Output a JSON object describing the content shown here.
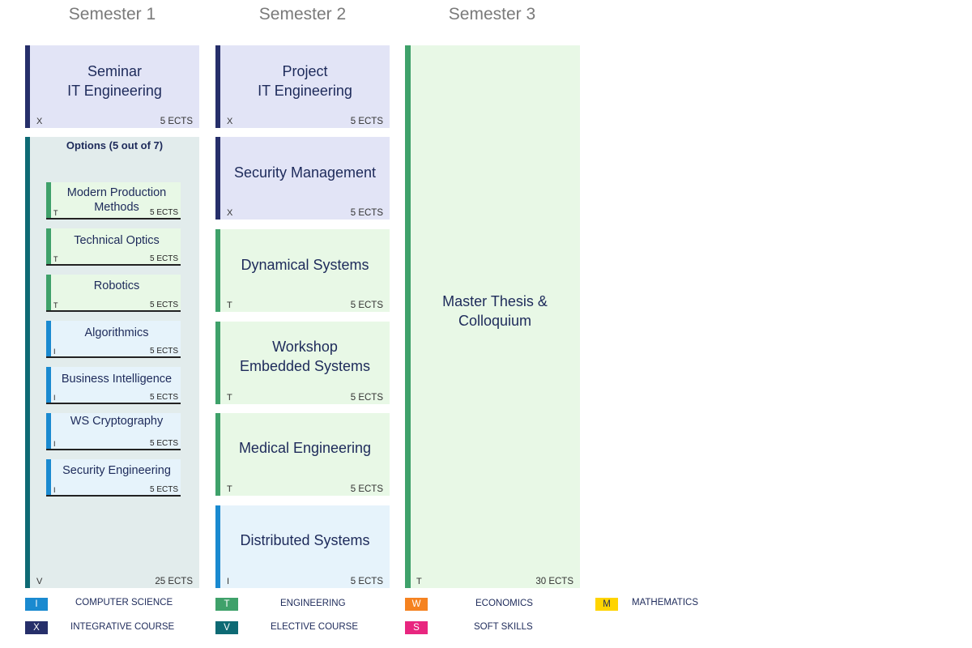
{
  "colors": {
    "computer_science": "#1a8ad0",
    "engineering": "#3fa16a",
    "economics": "#f58220",
    "mathematics": "#ffd400",
    "integrative": "#262f6a",
    "elective": "#0e6a74",
    "soft_skills": "#e8267f",
    "bg_integrative": "#e2e4f6",
    "bg_engineering": "#e8f8e6",
    "bg_computer_science": "#e6f3fb",
    "bg_elective": "#e2ecec"
  },
  "semesters": [
    "Semester 1",
    "Semester 2",
    "Semester 3"
  ],
  "sem1": {
    "seminar": {
      "title": "Seminar\nIT Engineering",
      "cat": "X",
      "ects": "5 ECTS"
    },
    "options": {
      "heading": "Options (5 out of 7)",
      "cat": "V",
      "ects": "25 ECTS",
      "items": [
        {
          "title": "Modern Production\nMethods",
          "cat": "T",
          "ects": "5 ECTS"
        },
        {
          "title": "Technical Optics",
          "cat": "T",
          "ects": "5 ECTS"
        },
        {
          "title": "Robotics",
          "cat": "T",
          "ects": "5 ECTS"
        },
        {
          "title": "Algorithmics",
          "cat": "I",
          "ects": "5 ECTS"
        },
        {
          "title": "Business Intelligence",
          "cat": "I",
          "ects": "5 ECTS"
        },
        {
          "title": "WS Cryptography",
          "cat": "I",
          "ects": "5 ECTS"
        },
        {
          "title": "Security Engineering",
          "cat": "I",
          "ects": "5 ECTS"
        }
      ]
    }
  },
  "sem2": [
    {
      "title": "Project\nIT Engineering",
      "cat": "X",
      "ects": "5 ECTS"
    },
    {
      "title": "Security Management",
      "cat": "X",
      "ects": "5 ECTS"
    },
    {
      "title": "Dynamical Systems",
      "cat": "T",
      "ects": "5 ECTS"
    },
    {
      "title": "Workshop\nEmbedded Systems",
      "cat": "T",
      "ects": "5 ECTS"
    },
    {
      "title": "Medical Engineering",
      "cat": "T",
      "ects": "5 ECTS"
    },
    {
      "title": "Distributed Systems",
      "cat": "I",
      "ects": "5 ECTS"
    }
  ],
  "sem3": {
    "title": "Master Thesis &\nColloquium",
    "cat": "T",
    "ects": "30 ECTS"
  },
  "legend": [
    {
      "code": "I",
      "label": "COMPUTER SCIENCE"
    },
    {
      "code": "T",
      "label": "ENGINEERING"
    },
    {
      "code": "W",
      "label": "ECONOMICS"
    },
    {
      "code": "M",
      "label": "MATHEMATICS"
    },
    {
      "code": "X",
      "label": "INTEGRATIVE COURSE"
    },
    {
      "code": "V",
      "label": "ELECTIVE COURSE"
    },
    {
      "code": "S",
      "label": "SOFT SKILLS"
    }
  ]
}
